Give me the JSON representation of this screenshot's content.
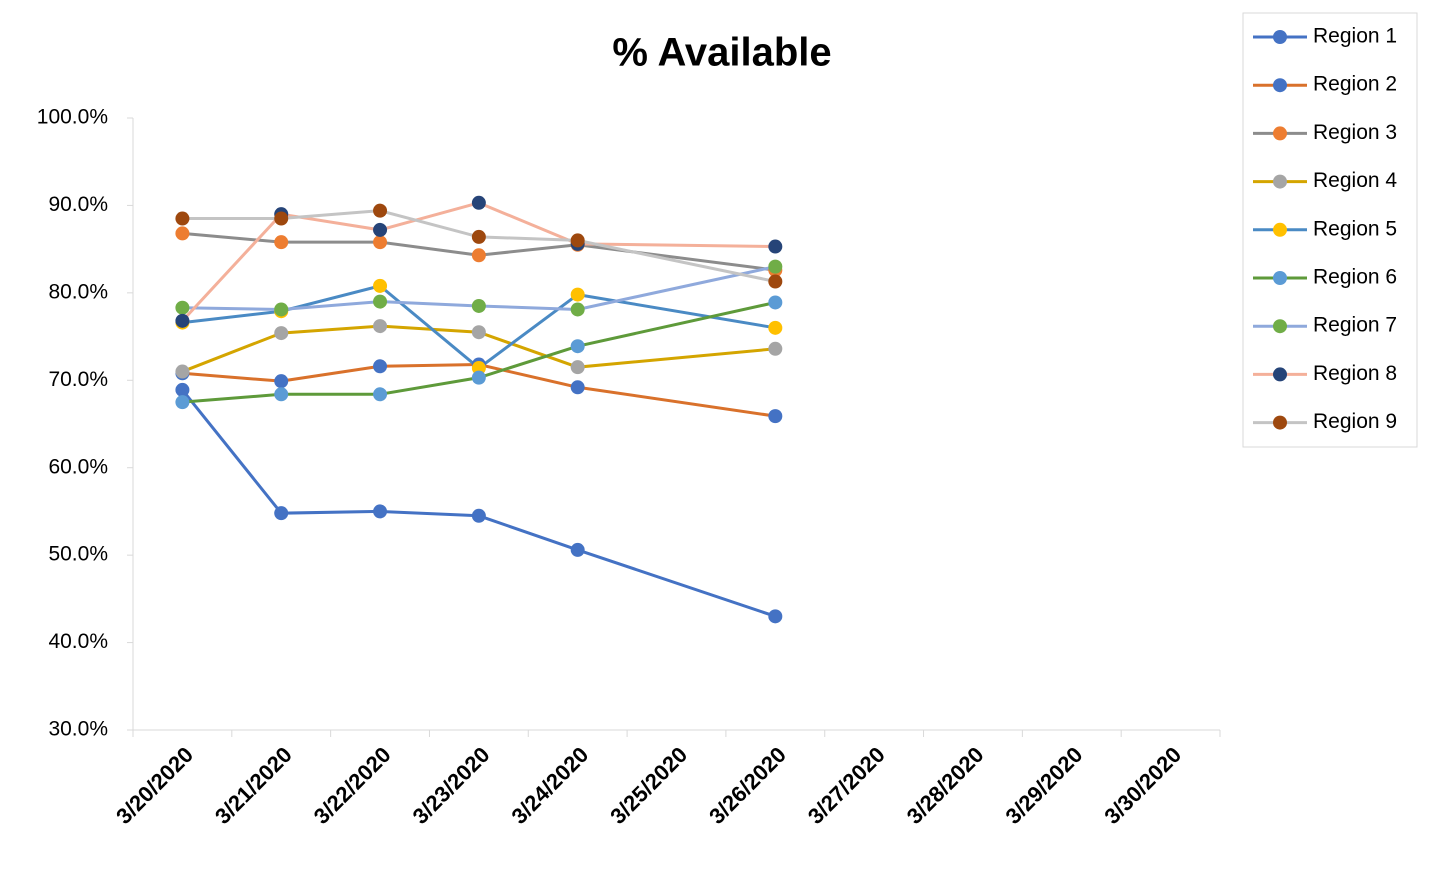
{
  "chart_data": {
    "type": "line",
    "title": "% Available",
    "categories": [
      "3/20/2020",
      "3/21/2020",
      "3/22/2020",
      "3/23/2020",
      "3/24/2020",
      "3/25/2020",
      "3/26/2020",
      "3/27/2020",
      "3/28/2020",
      "3/29/2020",
      "3/30/2020"
    ],
    "ylim": [
      30,
      100
    ],
    "yticks": [
      {
        "value": 30,
        "label": "30.0%"
      },
      {
        "value": 40,
        "label": "40.0%"
      },
      {
        "value": 50,
        "label": "50.0%"
      },
      {
        "value": 60,
        "label": "60.0%"
      },
      {
        "value": 70,
        "label": "70.0%"
      },
      {
        "value": 80,
        "label": "80.0%"
      },
      {
        "value": 90,
        "label": "90.0%"
      },
      {
        "value": 100,
        "label": "100.0%"
      }
    ],
    "span_gaps": true,
    "legend": "top-right",
    "series": [
      {
        "name": "Region 1",
        "color": "#4472c4",
        "marker_color": "#4472c4",
        "values": [
          68.9,
          54.8,
          55.0,
          54.5,
          50.6,
          null,
          43.0,
          null,
          null,
          null,
          null
        ]
      },
      {
        "name": "Region 2",
        "color": "#d9712b",
        "marker_color": "#4472c4",
        "values": [
          70.8,
          69.9,
          71.6,
          71.8,
          69.2,
          null,
          65.9,
          null,
          null,
          null,
          null
        ]
      },
      {
        "name": "Region 3",
        "color": "#8c8c8c",
        "marker_color": "#ed7d31",
        "values": [
          86.8,
          85.8,
          85.8,
          84.3,
          85.5,
          null,
          82.6,
          null,
          null,
          null,
          null
        ]
      },
      {
        "name": "Region 4",
        "color": "#d4a500",
        "marker_color": "#a5a5a5",
        "values": [
          71.0,
          75.4,
          76.2,
          75.5,
          71.5,
          null,
          73.6,
          null,
          null,
          null,
          null
        ]
      },
      {
        "name": "Region 5",
        "color": "#4a8ac4",
        "marker_color": "#ffc000",
        "values": [
          76.6,
          77.9,
          80.8,
          71.4,
          79.8,
          null,
          76.0,
          null,
          null,
          null,
          null
        ]
      },
      {
        "name": "Region 6",
        "color": "#5e9a3a",
        "marker_color": "#5b9bd5",
        "values": [
          67.5,
          68.4,
          68.4,
          70.3,
          73.9,
          null,
          78.9,
          null,
          null,
          null,
          null
        ]
      },
      {
        "name": "Region 7",
        "color": "#8fa9dc",
        "marker_color": "#70ad47",
        "values": [
          78.3,
          78.1,
          79.0,
          78.5,
          78.1,
          null,
          83.0,
          null,
          null,
          null,
          null
        ]
      },
      {
        "name": "Region 8",
        "color": "#f4b09a",
        "marker_color": "#264478",
        "values": [
          76.8,
          89.0,
          87.2,
          90.3,
          85.6,
          null,
          85.3,
          null,
          null,
          null,
          null
        ]
      },
      {
        "name": "Region 9",
        "color": "#c4c4c4",
        "marker_color": "#9e480e",
        "values": [
          88.5,
          88.5,
          89.4,
          86.4,
          86.0,
          null,
          81.3,
          null,
          null,
          null,
          null
        ]
      }
    ]
  }
}
